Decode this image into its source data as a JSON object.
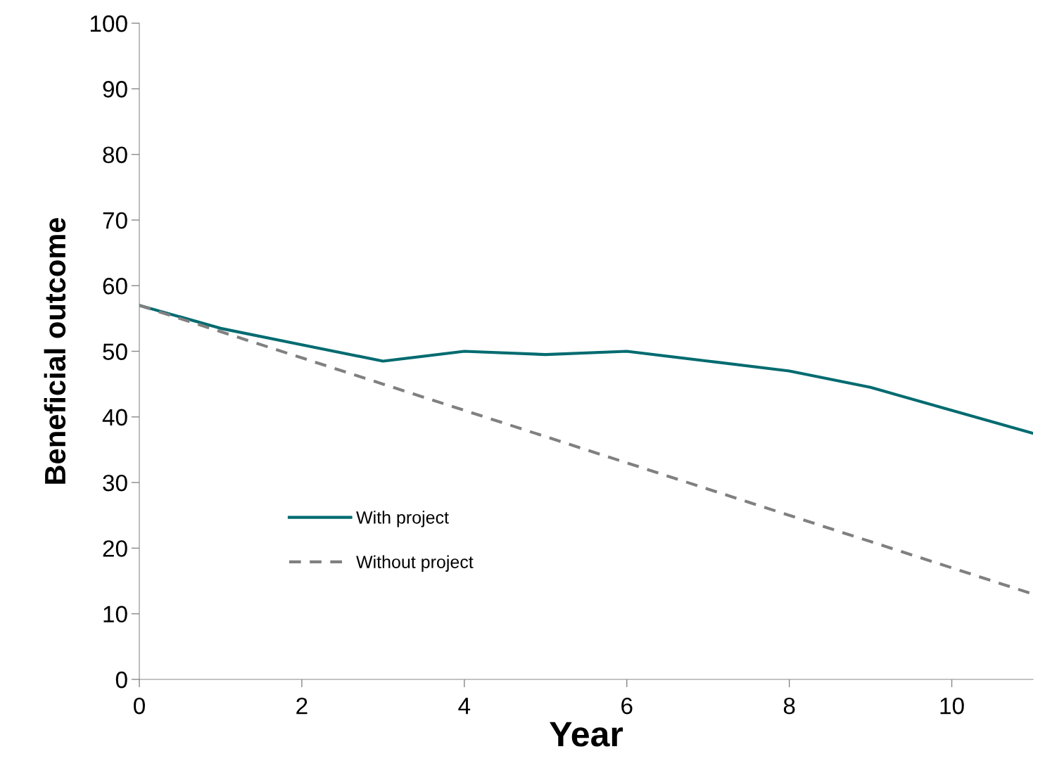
{
  "chart_data": {
    "type": "line",
    "xlabel": "Year",
    "ylabel": "Beneficial outcome",
    "x": [
      0,
      1,
      2,
      3,
      4,
      5,
      6,
      7,
      8,
      9,
      10,
      11
    ],
    "series": [
      {
        "name": "With project",
        "color": "#006b70",
        "line_style": "solid",
        "values": [
          57,
          53.5,
          51,
          48.5,
          50,
          49.5,
          50,
          48.5,
          47,
          44.5,
          41,
          37.5
        ]
      },
      {
        "name": "Without project",
        "color": "#808080",
        "line_style": "dashed",
        "values": [
          57,
          53,
          49,
          45,
          41,
          37,
          33,
          29,
          25,
          21,
          17,
          13
        ]
      }
    ],
    "xlim": [
      0,
      11
    ],
    "xticks": [
      0,
      2,
      4,
      6,
      8,
      10
    ],
    "ylim": [
      0,
      100
    ],
    "yticks": [
      0,
      10,
      20,
      30,
      40,
      50,
      60,
      70,
      80,
      90,
      100
    ],
    "grid": false,
    "legend": "lower left",
    "marker": "none"
  }
}
